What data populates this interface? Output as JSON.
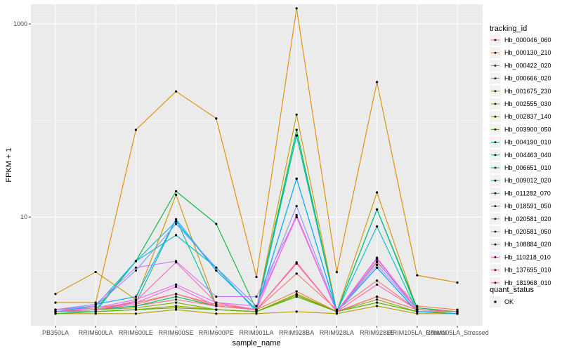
{
  "chart_data": {
    "type": "line",
    "xlabel": "sample_name",
    "ylabel": "FPKM + 1",
    "y_scale": "log10",
    "y_ticks": [
      10,
      1000
    ],
    "y_tick_labels": [
      "10",
      "1000"
    ],
    "ylim": [
      0.75,
      1600
    ],
    "categories": [
      "PB350LA",
      "RRIM600LA",
      "RRIM600LE",
      "RRIM600SE",
      "RRIM600PE",
      "RRIM901LA",
      "RRIM928BA",
      "RRIM928LA",
      "RRIM928LE",
      "RRIM105LA_Control",
      "RRIM105LA_Stressed"
    ],
    "legend_title": "tracking_id",
    "legend2_title": "quant_status",
    "legend2_entries": [
      "OK"
    ],
    "series": [
      {
        "name": "Hb_000046_060",
        "color": "#F8766D",
        "values": [
          1.05,
          1.1,
          1.2,
          1.4,
          1.2,
          1.1,
          2.6,
          1.1,
          2.2,
          1.1,
          1.05
        ]
      },
      {
        "name": "Hb_000130_210",
        "color": "#EF7F49",
        "values": [
          1.1,
          1.15,
          1.3,
          1.6,
          1.25,
          1.1,
          1.7,
          1.05,
          3.4,
          1.2,
          1.1
        ]
      },
      {
        "name": "Hb_000422_020",
        "color": "#DE8C00",
        "values": [
          1.3,
          1.3,
          80,
          200,
          105,
          2.4,
          1450,
          2.7,
          250,
          2.5,
          2.1
        ]
      },
      {
        "name": "Hb_000666_020",
        "color": "#CD9600",
        "values": [
          1.6,
          2.7,
          1.4,
          17,
          1.2,
          1.1,
          115,
          1.05,
          18,
          1.1,
          1.05
        ]
      },
      {
        "name": "Hb_001675_230",
        "color": "#B79F00",
        "values": [
          1.0,
          1.0,
          1.0,
          1.1,
          1.0,
          1.0,
          1.05,
          1.0,
          1.2,
          1.0,
          1.0
        ]
      },
      {
        "name": "Hb_002555_030",
        "color": "#9DA700",
        "values": [
          1.05,
          1.05,
          1.1,
          1.2,
          1.1,
          1.05,
          1.55,
          1.05,
          1.4,
          1.05,
          1.05
        ]
      },
      {
        "name": "Hb_002837_140",
        "color": "#7CAE00",
        "values": [
          1.05,
          1.1,
          1.15,
          1.3,
          1.1,
          1.05,
          1.6,
          1.05,
          1.5,
          1.1,
          1.05
        ]
      },
      {
        "name": "Hb_003900_050",
        "color": "#49B500",
        "values": [
          1.0,
          1.05,
          1.1,
          1.15,
          1.1,
          1.05,
          1.5,
          1.05,
          1.3,
          1.05,
          1.0
        ]
      },
      {
        "name": "Hb_004190_010",
        "color": "#00BA38",
        "values": [
          1.05,
          1.1,
          3.5,
          18.5,
          8.5,
          1.1,
          80,
          1.05,
          12,
          1.15,
          1.05
        ]
      },
      {
        "name": "Hb_004463_040",
        "color": "#00BE6C",
        "values": [
          1.05,
          1.1,
          1.2,
          1.5,
          1.2,
          1.1,
          70,
          1.05,
          12,
          1.1,
          1.05
        ]
      },
      {
        "name": "Hb_006651_010",
        "color": "#00BF96",
        "values": [
          1.05,
          1.1,
          1.3,
          9.5,
          1.2,
          1.1,
          70,
          1.05,
          12,
          1.1,
          1.05
        ]
      },
      {
        "name": "Hb_009012_020",
        "color": "#00BFC4",
        "values": [
          1.05,
          1.05,
          3.5,
          6.5,
          3.0,
          1.05,
          70,
          1.05,
          8.0,
          1.05,
          1.0
        ]
      },
      {
        "name": "Hb_011282_070",
        "color": "#00B8E7",
        "values": [
          1.05,
          1.2,
          3.5,
          9,
          2.8,
          1.1,
          25,
          1.05,
          3.0,
          1.05,
          1.0
        ]
      },
      {
        "name": "Hb_018591_050",
        "color": "#00A9FF",
        "values": [
          1.1,
          1.25,
          1.5,
          9.5,
          2.8,
          1.1,
          25,
          1.05,
          3.0,
          1.05,
          1.0
        ]
      },
      {
        "name": "Hb_020581_020",
        "color": "#8494FF",
        "values": [
          1.1,
          1.2,
          2.8,
          8.5,
          3.0,
          1.2,
          13,
          1.05,
          3.5,
          1.1,
          1.05
        ]
      },
      {
        "name": "Hb_020581_050",
        "color": "#C77CFF",
        "values": [
          1.1,
          1.25,
          3.0,
          3.5,
          1.5,
          1.5,
          10,
          1.05,
          3.2,
          1.1,
          1.05
        ]
      },
      {
        "name": "Hb_108884_020",
        "color": "#E76BF3",
        "values": [
          1.05,
          1.15,
          1.4,
          2.0,
          1.3,
          1.2,
          10,
          1.05,
          3.8,
          1.1,
          1.05
        ]
      },
      {
        "name": "Hb_110218_010",
        "color": "#FA62DB",
        "values": [
          1.05,
          1.1,
          1.3,
          1.9,
          1.2,
          1.1,
          10.5,
          1.05,
          3.7,
          1.1,
          1.05
        ]
      },
      {
        "name": "Hb_137695_010",
        "color": "#FF62BC",
        "values": [
          1.05,
          1.1,
          1.35,
          3.4,
          1.3,
          1.1,
          3.4,
          1.05,
          2.0,
          1.1,
          1.05
        ]
      },
      {
        "name": "Hb_181968_010",
        "color": "#FF6C91",
        "values": [
          1.05,
          1.1,
          1.25,
          1.6,
          1.2,
          1.1,
          3.3,
          1.05,
          1.5,
          1.1,
          1.05
        ]
      }
    ]
  }
}
